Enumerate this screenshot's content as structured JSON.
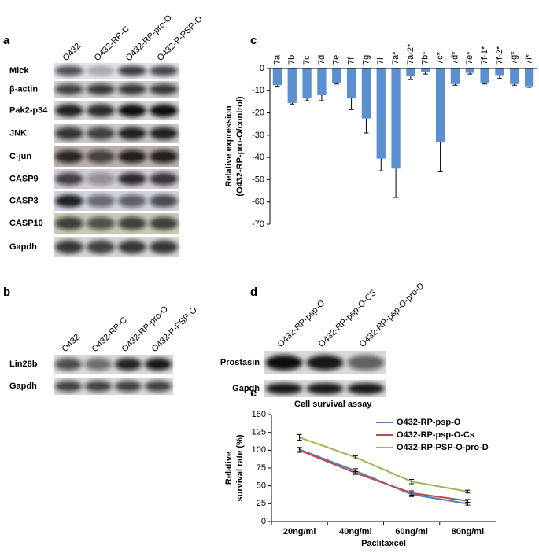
{
  "blot_a": {
    "panel": "a",
    "lanes": [
      "O432",
      "O432-RP-C",
      "O432-RP-pro-O",
      "O432-P-PSP-O"
    ],
    "rows": [
      "Mlck",
      "β-actin",
      "Pak2-p34",
      "JNK",
      "C-jun",
      "CASP9",
      "CASP3",
      "CASP10",
      "Gapdh"
    ]
  },
  "blot_b": {
    "panel": "b",
    "lanes": [
      "O432",
      "O432-RP-C",
      "O432-RP-pro-O",
      "O432-P-PSP-O"
    ],
    "rows": [
      "Lin28b",
      "Gapdh"
    ]
  },
  "blot_d": {
    "panel": "d",
    "lanes": [
      "O432-RP-psp-O",
      "O432-RP-psp-O-CS",
      "O432-RP-psp-O-pro-D"
    ],
    "rows": [
      "Prostasin",
      "Gapdh"
    ]
  },
  "chart_data": [
    {
      "type": "bar",
      "panel": "c",
      "y_label": [
        "Relative expression",
        "(O432-RP-pro-O/control)"
      ],
      "categories": [
        "7a",
        "7b",
        "7c",
        "7d",
        "7e",
        "7f",
        "7g",
        "7i",
        "7a*",
        "7a-2*",
        "7b*",
        "7c*",
        "7d*",
        "7e*",
        "7f-1*",
        "7f-2*",
        "7g*",
        "7i*"
      ],
      "values": [
        -7.5,
        -15.5,
        -13.5,
        -12,
        -6.5,
        -13.5,
        -22.5,
        -40.5,
        -45,
        -3.5,
        -1.5,
        -33,
        -7,
        -2,
        -6.5,
        -3,
        -7,
        -8
      ],
      "errors": [
        0.5,
        0.5,
        1,
        2.5,
        0.5,
        5,
        6.5,
        5.5,
        13,
        1.5,
        1,
        13.5,
        0.5,
        0.5,
        0.5,
        1.5,
        0.5,
        0.5
      ],
      "color": "#5b8fd0",
      "ylim": [
        -70,
        0
      ],
      "yticks": [
        0,
        -10,
        -20,
        -30,
        -40,
        -50,
        -60,
        -70
      ]
    },
    {
      "type": "line",
      "panel": "e",
      "title": "Cell survival assay",
      "x_label": "Paclitaxcel",
      "y_label": [
        "Relative",
        "survival rate (%)"
      ],
      "categories": [
        "20ng/ml",
        "40ng/ml",
        "60ng/ml",
        "80ng/ml"
      ],
      "series": [
        {
          "name": "O432-RP-psp-O",
          "color": "#4a7ebb",
          "values": [
            101,
            71,
            38,
            25
          ],
          "errors": [
            3,
            3,
            3,
            2
          ]
        },
        {
          "name": "O432-RP-psp-O-Cs",
          "color": "#be4b48",
          "values": [
            100,
            68,
            40,
            29
          ],
          "errors": [
            3,
            2,
            3,
            2
          ]
        },
        {
          "name": "O432-RP-PSP-O-pro-D",
          "color": "#98b954",
          "values": [
            118,
            90,
            56,
            42
          ],
          "errors": [
            4,
            2,
            3,
            2
          ]
        }
      ],
      "ylim": [
        0,
        150
      ],
      "yticks": [
        0,
        25,
        50,
        75,
        100,
        125,
        150
      ],
      "legend": "upper right"
    }
  ]
}
